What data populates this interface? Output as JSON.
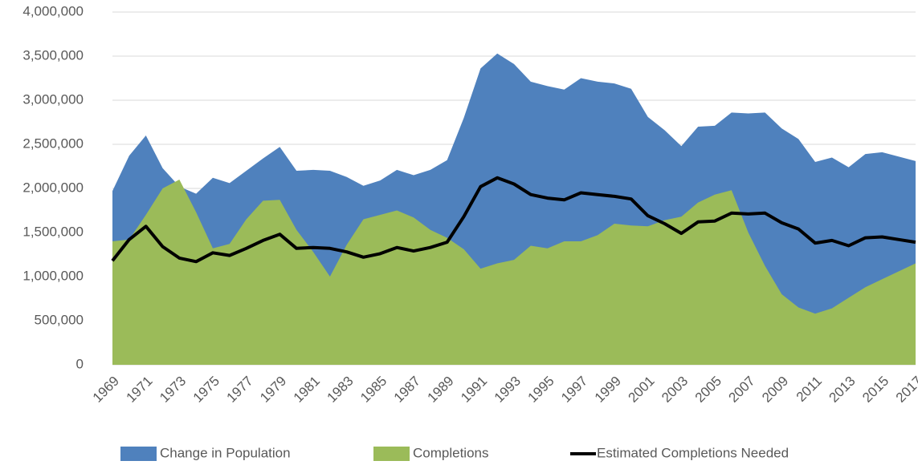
{
  "chart_data": {
    "type": "area",
    "x": [
      1969,
      1970,
      1971,
      1972,
      1973,
      1974,
      1975,
      1976,
      1977,
      1978,
      1979,
      1980,
      1981,
      1982,
      1983,
      1984,
      1985,
      1986,
      1987,
      1988,
      1989,
      1990,
      1991,
      1992,
      1993,
      1994,
      1995,
      1996,
      1997,
      1998,
      1999,
      2000,
      2001,
      2002,
      2003,
      2004,
      2005,
      2006,
      2007,
      2008,
      2009,
      2010,
      2011,
      2012,
      2013,
      2014,
      2015,
      2016,
      2017
    ],
    "xlim": [
      1969,
      2017
    ],
    "xticks": [
      1969,
      1971,
      1973,
      1975,
      1977,
      1979,
      1981,
      1983,
      1985,
      1987,
      1989,
      1991,
      1993,
      1995,
      1997,
      1999,
      2001,
      2003,
      2005,
      2007,
      2009,
      2011,
      2013,
      2015,
      2017
    ],
    "ylim": [
      0,
      4000000
    ],
    "yticks": [
      0,
      {
        "value": 500000,
        "label": "500,000"
      },
      {
        "value": 1000000,
        "label": "1,000,000"
      },
      {
        "value": 1500000,
        "label": "1,500,000"
      },
      {
        "value": 2000000,
        "label": "2,000,000"
      },
      {
        "value": 2500000,
        "label": "2,500,000"
      },
      {
        "value": 3000000,
        "label": "3,000,000"
      },
      {
        "value": 3500000,
        "label": "3,500,000"
      },
      {
        "value": 4000000,
        "label": "4,000,000"
      }
    ],
    "grid": true,
    "legend": "bottom",
    "series": [
      {
        "name": "Change in Population",
        "type": "area",
        "color": "#4f81bd",
        "values": [
          1970000,
          2370000,
          2600000,
          2230000,
          2020000,
          1940000,
          2120000,
          2060000,
          2200000,
          2340000,
          2470000,
          2200000,
          2210000,
          2200000,
          2130000,
          2030000,
          2090000,
          2210000,
          2150000,
          2210000,
          2320000,
          2800000,
          3360000,
          3530000,
          3410000,
          3210000,
          3160000,
          3120000,
          3250000,
          3210000,
          3190000,
          3130000,
          2810000,
          2660000,
          2480000,
          2700000,
          2710000,
          2860000,
          2850000,
          2860000,
          2680000,
          2560000,
          2300000,
          2350000,
          2240000,
          2390000,
          2410000,
          2360000,
          2310000
        ]
      },
      {
        "name": "Completions",
        "type": "area",
        "color": "#9bbb59",
        "values": [
          1400000,
          1420000,
          1700000,
          2000000,
          2100000,
          1730000,
          1320000,
          1370000,
          1650000,
          1860000,
          1870000,
          1530000,
          1280000,
          1000000,
          1360000,
          1650000,
          1700000,
          1750000,
          1670000,
          1530000,
          1440000,
          1310000,
          1090000,
          1150000,
          1190000,
          1350000,
          1320000,
          1400000,
          1400000,
          1470000,
          1600000,
          1580000,
          1570000,
          1640000,
          1680000,
          1840000,
          1930000,
          1980000,
          1500000,
          1120000,
          800000,
          650000,
          580000,
          640000,
          760000,
          880000,
          970000,
          1060000,
          1150000
        ]
      },
      {
        "name": "Estimated Completions Needed",
        "type": "line",
        "color": "#000000",
        "values": [
          1180000,
          1420000,
          1570000,
          1340000,
          1210000,
          1170000,
          1270000,
          1240000,
          1320000,
          1410000,
          1480000,
          1320000,
          1330000,
          1320000,
          1280000,
          1220000,
          1260000,
          1330000,
          1290000,
          1330000,
          1390000,
          1680000,
          2020000,
          2120000,
          2050000,
          1930000,
          1890000,
          1870000,
          1950000,
          1930000,
          1910000,
          1880000,
          1690000,
          1600000,
          1490000,
          1620000,
          1630000,
          1720000,
          1710000,
          1720000,
          1610000,
          1540000,
          1380000,
          1410000,
          1350000,
          1440000,
          1450000,
          1420000,
          1390000
        ]
      }
    ]
  }
}
